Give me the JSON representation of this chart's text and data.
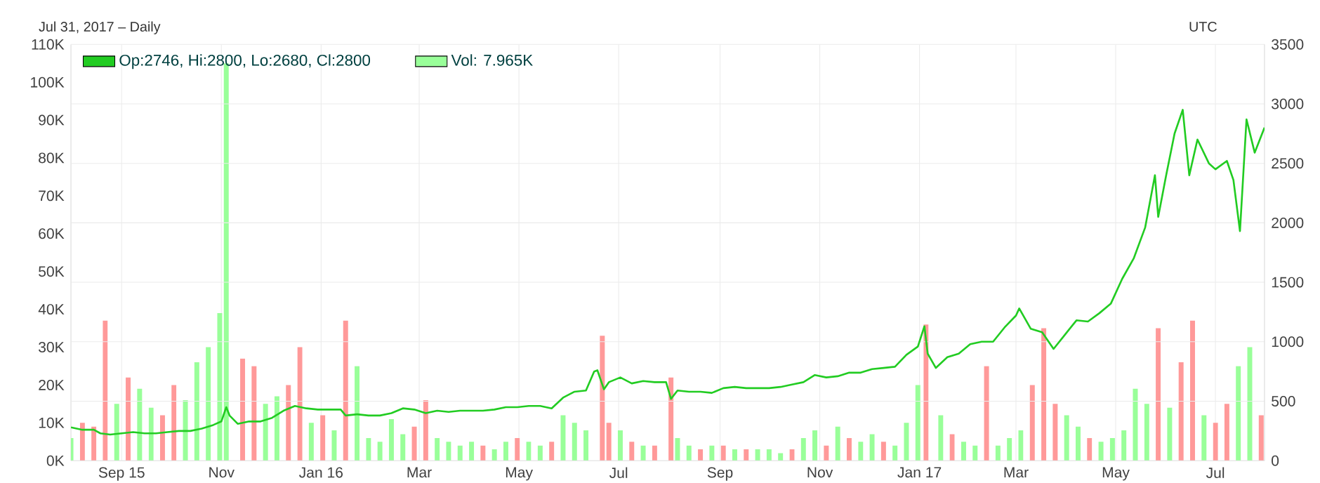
{
  "chart_data": {
    "type": "line",
    "subtitle": "Jul 31, 2017 – Daily",
    "annotations": [
      "UTC"
    ],
    "xlim": [
      "2015-08-01",
      "2017-07-31"
    ],
    "xticks": [
      {
        "value": "2015-09-01",
        "label": "Sep 15"
      },
      {
        "value": "2015-11-01",
        "label": "Nov"
      },
      {
        "value": "2016-01-01",
        "label": "Jan 16"
      },
      {
        "value": "2016-03-01",
        "label": "Mar"
      },
      {
        "value": "2016-05-01",
        "label": "May"
      },
      {
        "value": "2016-07-01",
        "label": "Jul"
      },
      {
        "value": "2016-09-01",
        "label": "Sep"
      },
      {
        "value": "2016-11-01",
        "label": "Nov"
      },
      {
        "value": "2017-01-01",
        "label": "Jan 17"
      },
      {
        "value": "2017-03-01",
        "label": "Mar"
      },
      {
        "value": "2017-05-01",
        "label": "May"
      },
      {
        "value": "2017-07-01",
        "label": "Jul"
      }
    ],
    "ylim": [
      0,
      110000
    ],
    "yticks": [
      {
        "value": 0,
        "label": "0K"
      },
      {
        "value": 10000,
        "label": "10K"
      },
      {
        "value": 20000,
        "label": "20K"
      },
      {
        "value": 30000,
        "label": "30K"
      },
      {
        "value": 40000,
        "label": "40K"
      },
      {
        "value": 50000,
        "label": "50K"
      },
      {
        "value": 60000,
        "label": "60K"
      },
      {
        "value": 70000,
        "label": "70K"
      },
      {
        "value": 80000,
        "label": "80K"
      },
      {
        "value": 90000,
        "label": "90K"
      },
      {
        "value": 100000,
        "label": "100K"
      },
      {
        "value": 110000,
        "label": "110K"
      }
    ],
    "y2lim": [
      0,
      3500
    ],
    "y2ticks": [
      0,
      500,
      1000,
      1500,
      2000,
      2500,
      3000,
      3500
    ],
    "grid": true,
    "legend": "top left",
    "series": [
      {
        "name": "Op:2746, Hi:2800, Lo:2680, Cl:2800",
        "axis": "y2",
        "color": "#22cc22",
        "x": [
          "2015-08-01",
          "2015-08-08",
          "2015-08-15",
          "2015-08-19",
          "2015-08-25",
          "2015-09-01",
          "2015-09-08",
          "2015-09-15",
          "2015-09-22",
          "2015-09-29",
          "2015-10-06",
          "2015-10-13",
          "2015-10-20",
          "2015-10-27",
          "2015-11-01",
          "2015-11-04",
          "2015-11-06",
          "2015-11-11",
          "2015-11-18",
          "2015-11-25",
          "2015-12-02",
          "2015-12-09",
          "2015-12-16",
          "2015-12-23",
          "2015-12-30",
          "2016-01-06",
          "2016-01-13",
          "2016-01-16",
          "2016-01-23",
          "2016-01-30",
          "2016-02-06",
          "2016-02-13",
          "2016-02-20",
          "2016-02-27",
          "2016-03-05",
          "2016-03-12",
          "2016-03-19",
          "2016-03-26",
          "2016-04-02",
          "2016-04-09",
          "2016-04-16",
          "2016-04-23",
          "2016-04-30",
          "2016-05-07",
          "2016-05-14",
          "2016-05-21",
          "2016-05-28",
          "2016-06-04",
          "2016-06-11",
          "2016-06-16",
          "2016-06-18",
          "2016-06-22",
          "2016-06-25",
          "2016-07-02",
          "2016-07-09",
          "2016-07-16",
          "2016-07-23",
          "2016-07-30",
          "2016-08-02",
          "2016-08-06",
          "2016-08-13",
          "2016-08-20",
          "2016-08-27",
          "2016-09-03",
          "2016-09-10",
          "2016-09-17",
          "2016-09-24",
          "2016-10-01",
          "2016-10-08",
          "2016-10-15",
          "2016-10-22",
          "2016-10-29",
          "2016-11-05",
          "2016-11-12",
          "2016-11-19",
          "2016-11-26",
          "2016-12-03",
          "2016-12-10",
          "2016-12-17",
          "2016-12-24",
          "2016-12-31",
          "2017-01-04",
          "2017-01-06",
          "2017-01-11",
          "2017-01-18",
          "2017-01-25",
          "2017-02-01",
          "2017-02-08",
          "2017-02-15",
          "2017-02-22",
          "2017-03-01",
          "2017-03-03",
          "2017-03-10",
          "2017-03-17",
          "2017-03-24",
          "2017-03-31",
          "2017-04-07",
          "2017-04-14",
          "2017-04-21",
          "2017-04-28",
          "2017-05-05",
          "2017-05-12",
          "2017-05-19",
          "2017-05-25",
          "2017-05-27",
          "2017-06-01",
          "2017-06-06",
          "2017-06-11",
          "2017-06-15",
          "2017-06-20",
          "2017-06-27",
          "2017-07-01",
          "2017-07-08",
          "2017-07-12",
          "2017-07-16",
          "2017-07-20",
          "2017-07-25",
          "2017-07-31"
        ],
        "values": [
          280,
          260,
          260,
          230,
          220,
          230,
          240,
          230,
          230,
          240,
          250,
          250,
          270,
          300,
          330,
          450,
          380,
          310,
          330,
          330,
          360,
          420,
          460,
          440,
          430,
          430,
          430,
          380,
          390,
          380,
          380,
          400,
          440,
          430,
          400,
          420,
          410,
          420,
          420,
          420,
          430,
          450,
          450,
          460,
          460,
          440,
          530,
          580,
          590,
          750,
          760,
          600,
          660,
          700,
          650,
          670,
          660,
          660,
          520,
          590,
          580,
          580,
          570,
          610,
          620,
          610,
          610,
          610,
          620,
          640,
          660,
          720,
          700,
          710,
          740,
          740,
          770,
          780,
          790,
          890,
          960,
          1130,
          900,
          780,
          870,
          900,
          980,
          1000,
          1000,
          1120,
          1220,
          1280,
          1110,
          1080,
          940,
          1060,
          1180,
          1170,
          1240,
          1320,
          1530,
          1700,
          1960,
          2400,
          2050,
          2410,
          2750,
          2950,
          2400,
          2700,
          2500,
          2450,
          2520,
          2360,
          1930,
          2870,
          2590,
          2800
        ]
      },
      {
        "name": "Vol: 7.965K",
        "type": "bar",
        "axis": "y",
        "color": "#99ff99",
        "x": [
          "2015-08-01",
          "2015-08-08",
          "2015-08-15",
          "2015-08-22",
          "2015-08-29",
          "2015-09-05",
          "2015-09-12",
          "2015-09-19",
          "2015-09-26",
          "2015-10-03",
          "2015-10-10",
          "2015-10-17",
          "2015-10-24",
          "2015-10-31",
          "2015-11-04",
          "2015-11-14",
          "2015-11-21",
          "2015-11-28",
          "2015-12-05",
          "2015-12-12",
          "2015-12-19",
          "2015-12-26",
          "2016-01-02",
          "2016-01-09",
          "2016-01-16",
          "2016-01-23",
          "2016-01-30",
          "2016-02-06",
          "2016-02-13",
          "2016-02-20",
          "2016-02-27",
          "2016-03-05",
          "2016-03-12",
          "2016-03-19",
          "2016-03-26",
          "2016-04-02",
          "2016-04-09",
          "2016-04-16",
          "2016-04-23",
          "2016-04-30",
          "2016-05-07",
          "2016-05-14",
          "2016-05-21",
          "2016-05-28",
          "2016-06-04",
          "2016-06-11",
          "2016-06-21",
          "2016-06-25",
          "2016-07-02",
          "2016-07-09",
          "2016-07-16",
          "2016-07-23",
          "2016-08-02",
          "2016-08-06",
          "2016-08-13",
          "2016-08-20",
          "2016-08-27",
          "2016-09-03",
          "2016-09-10",
          "2016-09-17",
          "2016-09-24",
          "2016-10-01",
          "2016-10-08",
          "2016-10-15",
          "2016-10-22",
          "2016-10-29",
          "2016-11-05",
          "2016-11-12",
          "2016-11-19",
          "2016-11-26",
          "2016-12-03",
          "2016-12-10",
          "2016-12-17",
          "2016-12-24",
          "2016-12-31",
          "2017-01-05",
          "2017-01-14",
          "2017-01-21",
          "2017-01-28",
          "2017-02-04",
          "2017-02-11",
          "2017-02-18",
          "2017-02-25",
          "2017-03-04",
          "2017-03-11",
          "2017-03-18",
          "2017-03-25",
          "2017-04-01",
          "2017-04-08",
          "2017-04-15",
          "2017-04-22",
          "2017-04-29",
          "2017-05-06",
          "2017-05-13",
          "2017-05-20",
          "2017-05-27",
          "2017-06-03",
          "2017-06-10",
          "2017-06-17",
          "2017-06-24",
          "2017-07-01",
          "2017-07-08",
          "2017-07-15",
          "2017-07-22",
          "2017-07-29"
        ],
        "values": [
          6000,
          10000,
          9000,
          37000,
          15000,
          22000,
          19000,
          14000,
          12000,
          20000,
          16000,
          26000,
          30000,
          39000,
          105000,
          27000,
          25000,
          15000,
          17000,
          20000,
          30000,
          10000,
          12000,
          8000,
          37000,
          25000,
          6000,
          5000,
          11000,
          7000,
          9000,
          16000,
          6000,
          5000,
          4000,
          5000,
          4000,
          3000,
          5000,
          6000,
          5000,
          4000,
          5000,
          12000,
          10000,
          8000,
          33000,
          10000,
          8000,
          5000,
          4000,
          4000,
          22000,
          6000,
          4000,
          3000,
          4000,
          4000,
          3000,
          3000,
          3000,
          3000,
          2000,
          3000,
          6000,
          8000,
          4000,
          9000,
          6000,
          5000,
          7000,
          5000,
          4000,
          10000,
          20000,
          36000,
          12000,
          7000,
          5000,
          4000,
          25000,
          4000,
          6000,
          8000,
          20000,
          35000,
          15000,
          12000,
          9000,
          6000,
          5000,
          6000,
          8000,
          19000,
          15000,
          35000,
          14000,
          26000,
          37000,
          12000,
          10000,
          15000,
          25000,
          30000,
          12000
        ],
        "colors": [
          "#99ff99",
          "#ff9999",
          "#ff9999",
          "#ff9999",
          "#99ff99",
          "#ff9999",
          "#99ff99",
          "#99ff99",
          "#ff9999",
          "#ff9999",
          "#99ff99",
          "#99ff99",
          "#99ff99",
          "#99ff99",
          "#99ff99",
          "#ff9999",
          "#ff9999",
          "#99ff99",
          "#99ff99",
          "#ff9999",
          "#ff9999",
          "#99ff99",
          "#ff9999",
          "#99ff99",
          "#ff9999",
          "#99ff99",
          "#99ff99",
          "#99ff99",
          "#99ff99",
          "#99ff99",
          "#ff9999",
          "#ff9999",
          "#99ff99",
          "#99ff99",
          "#99ff99",
          "#99ff99",
          "#ff9999",
          "#99ff99",
          "#99ff99",
          "#ff9999",
          "#99ff99",
          "#99ff99",
          "#ff9999",
          "#99ff99",
          "#99ff99",
          "#99ff99",
          "#ff9999",
          "#ff9999",
          "#99ff99",
          "#ff9999",
          "#99ff99",
          "#ff9999",
          "#ff9999",
          "#99ff99",
          "#99ff99",
          "#ff9999",
          "#99ff99",
          "#ff9999",
          "#99ff99",
          "#ff9999",
          "#99ff99",
          "#99ff99",
          "#99ff99",
          "#ff9999",
          "#99ff99",
          "#99ff99",
          "#ff9999",
          "#99ff99",
          "#ff9999",
          "#99ff99",
          "#99ff99",
          "#ff9999",
          "#99ff99",
          "#99ff99",
          "#99ff99",
          "#ff9999",
          "#99ff99",
          "#ff9999",
          "#99ff99",
          "#99ff99",
          "#ff9999",
          "#99ff99",
          "#99ff99",
          "#99ff99",
          "#ff9999",
          "#ff9999",
          "#ff9999",
          "#99ff99",
          "#99ff99",
          "#ff9999",
          "#99ff99",
          "#99ff99",
          "#99ff99",
          "#99ff99",
          "#99ff99",
          "#ff9999",
          "#99ff99",
          "#ff9999",
          "#ff9999",
          "#99ff99",
          "#ff9999",
          "#ff9999",
          "#99ff99",
          "#99ff99",
          "#ff9999"
        ]
      }
    ]
  }
}
